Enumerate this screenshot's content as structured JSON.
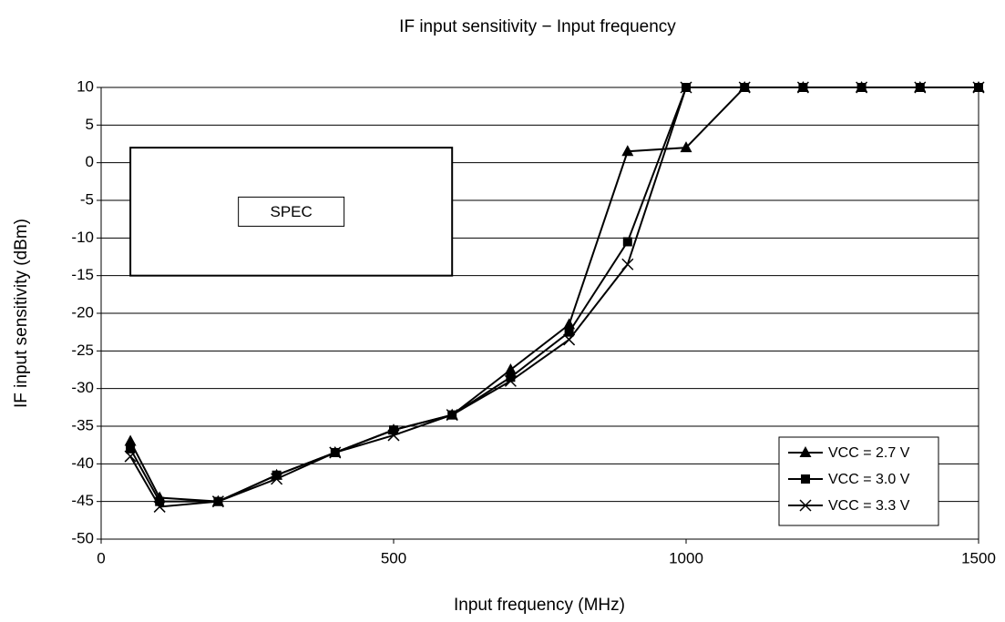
{
  "chart_data": {
    "type": "line",
    "title": "IF input sensitivity − Input frequency",
    "x_label": "Input frequency  (MHz)",
    "y_label": "IF input sensitivity (dBm)",
    "x": [
      50,
      100,
      200,
      300,
      400,
      500,
      600,
      700,
      800,
      900,
      1000,
      1100,
      1200,
      1300,
      1400,
      1500
    ],
    "series": [
      {
        "name": "VCC = 2.7 V",
        "color": "#000000",
        "marker": "triangle",
        "values": [
          -37,
          -44.5,
          -45,
          -41.5,
          -38.5,
          -35.5,
          -33.5,
          -27.5,
          -21.5,
          1.5,
          2,
          10,
          10,
          10,
          10,
          10
        ]
      },
      {
        "name": "VCC = 3.0 V",
        "color": "#000000",
        "marker": "square",
        "values": [
          -38,
          -45,
          -45,
          -41.5,
          -38.5,
          -35.5,
          -33.5,
          -28.5,
          -22.5,
          -10.5,
          10,
          10,
          10,
          10,
          10,
          10
        ]
      },
      {
        "name": "VCC = 3.3 V",
        "color": "#000000",
        "marker": "x",
        "values": [
          -39,
          -45.7,
          -45,
          -42,
          -38.5,
          -36.2,
          -33.5,
          -29,
          -23.5,
          -13.5,
          10,
          10,
          10,
          10,
          10,
          10
        ]
      }
    ],
    "xlim": [
      0,
      1500
    ],
    "xticks": [
      0,
      500,
      1000,
      1500
    ],
    "ylim": [
      -50,
      10
    ],
    "yticks": [
      10,
      5,
      0,
      -5,
      -10,
      -15,
      -20,
      -25,
      -30,
      -35,
      -40,
      -45,
      -50
    ],
    "grid": true,
    "legend": "lower right",
    "spec_region": {
      "label": "SPEC",
      "x": [
        50,
        600
      ],
      "y": [
        -15,
        2
      ]
    }
  }
}
